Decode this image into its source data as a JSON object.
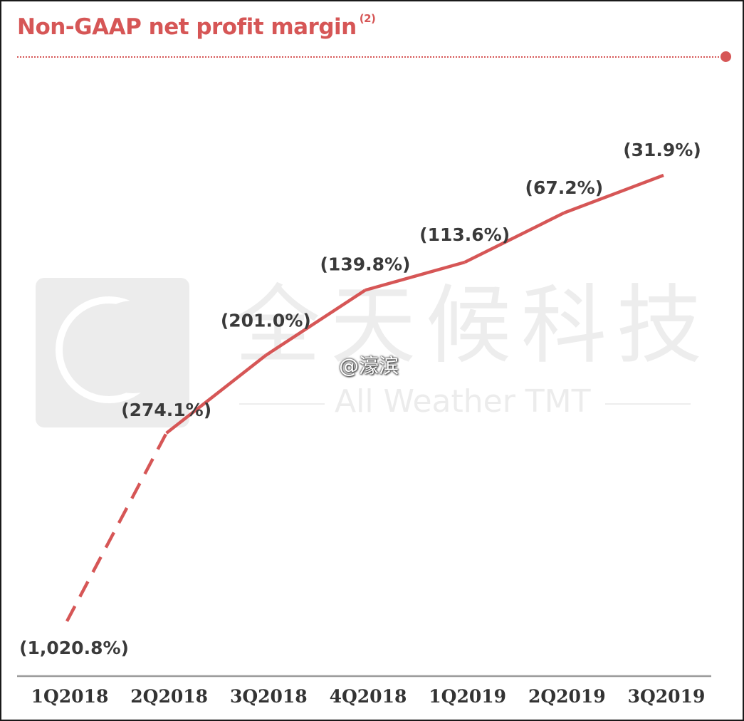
{
  "title": {
    "text": "Non-GAAP net profit margin",
    "superscript": "(2)"
  },
  "watermark": {
    "chinese_name": "全天候科技",
    "english_name": "All Weather TMT",
    "handle": "@濠滨"
  },
  "colors": {
    "accent": "#d65656",
    "line": "#d65656",
    "axis": "#9a9a9a",
    "label": "#3a3a3a"
  },
  "chart_data": {
    "type": "line",
    "title": "Non-GAAP net profit margin (2)",
    "xlabel": "",
    "ylabel": "",
    "categories": [
      "1Q2018",
      "2Q2018",
      "3Q2018",
      "4Q2018",
      "1Q2019",
      "2Q2019",
      "3Q2019"
    ],
    "values": [
      -1020.8,
      -274.1,
      -201.0,
      -139.8,
      -113.6,
      -67.2,
      -31.9
    ],
    "data_labels": [
      "(1,020.8%)",
      "(274.1%)",
      "(201.0%)",
      "(139.8%)",
      "(113.6%)",
      "(67.2%)",
      "(31.9%)"
    ],
    "dashed_segments": [
      [
        0,
        1
      ]
    ],
    "grid": false,
    "legend": "none",
    "axis_break": "between 1Q2018 and 2Q2018 (dashed segment, not to scale)"
  }
}
